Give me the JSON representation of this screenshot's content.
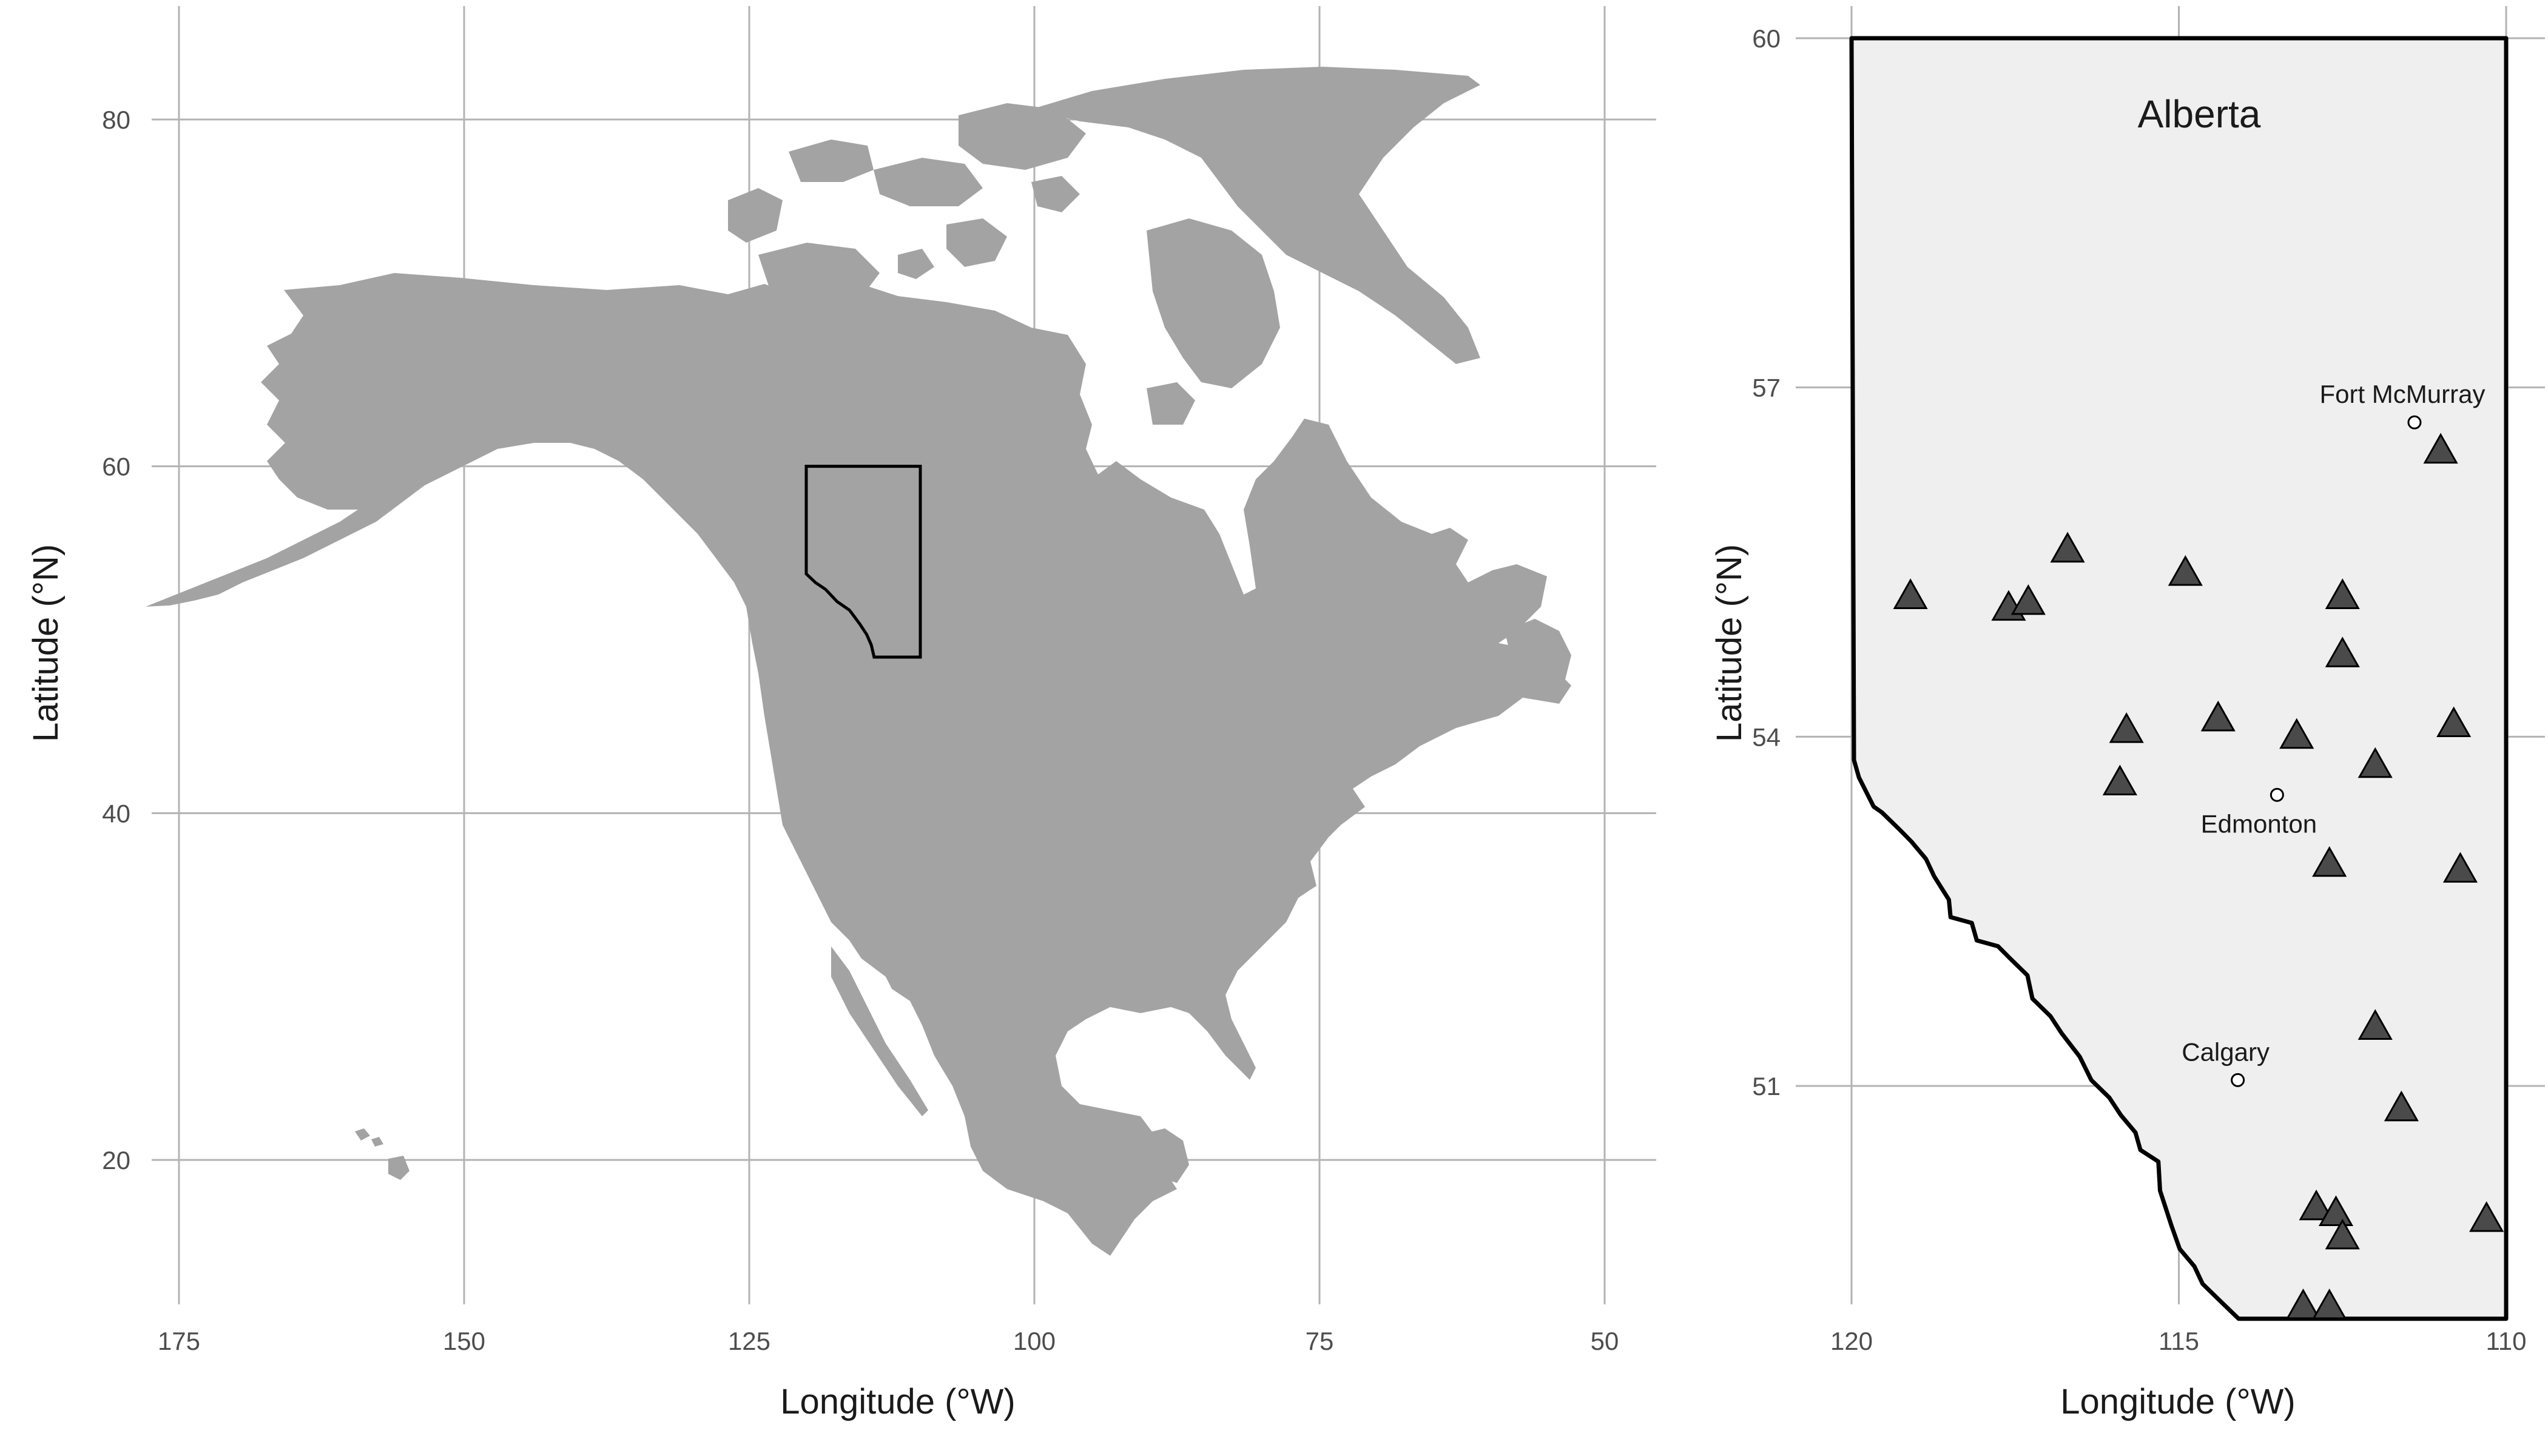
{
  "left_map": {
    "x_ticks": [
      "175",
      "150",
      "125",
      "100",
      "75",
      "50"
    ],
    "y_ticks": [
      "80",
      "60",
      "40",
      "20"
    ],
    "x_label": "Longitude (°W)",
    "y_label": "Latitude (°N)",
    "inset_box": {
      "lon_west": 120,
      "lon_east": 110,
      "lat_south": 49,
      "lat_north": 60
    }
  },
  "right_map": {
    "title": "Alberta",
    "x_ticks": [
      "120",
      "115",
      "110"
    ],
    "y_ticks": [
      "60",
      "57",
      "54",
      "51"
    ],
    "x_label": "Longitude (°W)",
    "y_label": "Latitude (°N)",
    "cities": [
      {
        "name": "Fort McMurray",
        "lon": 111.4,
        "lat": 56.7
      },
      {
        "name": "Edmonton",
        "lon": 113.5,
        "lat": 53.5
      },
      {
        "name": "Calgary",
        "lon": 114.1,
        "lat": 51.05
      }
    ],
    "stations": [
      {
        "lon": 119.1,
        "lat": 55.2
      },
      {
        "lon": 117.6,
        "lat": 55.1
      },
      {
        "lon": 117.3,
        "lat": 55.15
      },
      {
        "lon": 116.7,
        "lat": 55.6
      },
      {
        "lon": 114.9,
        "lat": 55.4
      },
      {
        "lon": 112.5,
        "lat": 55.2
      },
      {
        "lon": 112.5,
        "lat": 54.7
      },
      {
        "lon": 115.8,
        "lat": 54.05
      },
      {
        "lon": 115.9,
        "lat": 53.6
      },
      {
        "lon": 114.4,
        "lat": 54.15
      },
      {
        "lon": 113.2,
        "lat": 54.0
      },
      {
        "lon": 112.0,
        "lat": 53.75
      },
      {
        "lon": 110.8,
        "lat": 54.1
      },
      {
        "lon": 112.7,
        "lat": 52.9
      },
      {
        "lon": 110.7,
        "lat": 52.85
      },
      {
        "lon": 111.0,
        "lat": 56.45
      },
      {
        "lon": 112.0,
        "lat": 51.5
      },
      {
        "lon": 111.6,
        "lat": 50.8
      },
      {
        "lon": 112.9,
        "lat": 49.95
      },
      {
        "lon": 112.6,
        "lat": 49.9
      },
      {
        "lon": 112.5,
        "lat": 49.7
      },
      {
        "lon": 110.3,
        "lat": 49.85
      },
      {
        "lon": 113.1,
        "lat": 49.1
      },
      {
        "lon": 112.7,
        "lat": 49.1
      }
    ]
  },
  "colors": {
    "land": "#a3a3a3",
    "alberta_fill": "#efefef",
    "station_fill": "#4a4a4a",
    "outline": "#000000",
    "grid": "#b3b3b3"
  }
}
